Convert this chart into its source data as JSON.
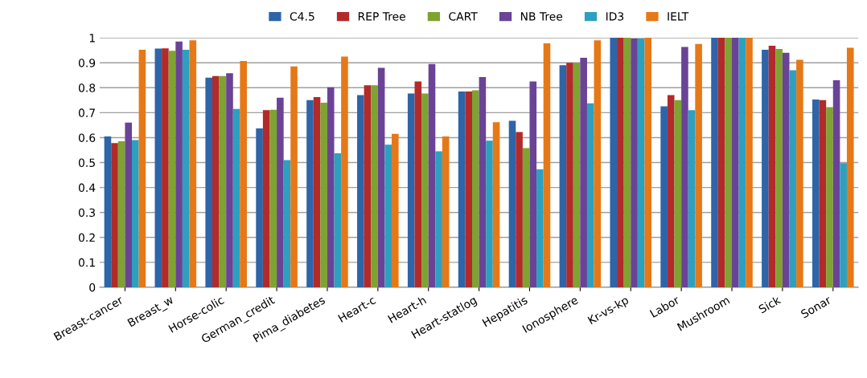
{
  "chart_data": {
    "type": "bar",
    "categories": [
      "Breast-cancer",
      "Breast_w",
      "Horse-colic",
      "German_credit",
      "Pima_diabetes",
      "Heart-c",
      "Heart-h",
      "Heart-statlog",
      "Hepatitis",
      "Ionosphere",
      "Kr-vs-kp",
      "Labor",
      "Mushroom",
      "Sick",
      "Sonar"
    ],
    "series": [
      {
        "name": "C4.5",
        "color": "#2e64a8",
        "values": [
          0.605,
          0.957,
          0.84,
          0.637,
          0.75,
          0.77,
          0.777,
          0.785,
          0.667,
          0.89,
          1.0,
          0.725,
          1.0,
          0.952,
          0.753
        ]
      },
      {
        "name": "REP Tree",
        "color": "#b22a2a",
        "values": [
          0.578,
          0.958,
          0.847,
          0.71,
          0.762,
          0.81,
          0.825,
          0.785,
          0.622,
          0.9,
          1.0,
          0.77,
          1.0,
          0.968,
          0.75
        ]
      },
      {
        "name": "CART",
        "color": "#7ea331",
        "values": [
          0.585,
          0.948,
          0.847,
          0.712,
          0.74,
          0.81,
          0.777,
          0.79,
          0.558,
          0.9,
          1.0,
          0.75,
          1.0,
          0.955,
          0.722
        ]
      },
      {
        "name": "NB Tree",
        "color": "#6a4396",
        "values": [
          0.66,
          0.985,
          0.858,
          0.76,
          0.802,
          0.88,
          0.895,
          0.843,
          0.825,
          0.92,
          0.997,
          0.963,
          1.0,
          0.94,
          0.83
        ]
      },
      {
        "name": "ID3",
        "color": "#2ea0bf",
        "values": [
          0.59,
          0.952,
          0.715,
          0.51,
          0.537,
          0.572,
          0.545,
          0.588,
          0.473,
          0.737,
          0.997,
          0.71,
          1.0,
          0.87,
          0.498
        ]
      },
      {
        "name": "IELT",
        "color": "#e67817",
        "values": [
          0.952,
          0.99,
          0.907,
          0.885,
          0.925,
          0.615,
          0.605,
          0.662,
          0.978,
          0.99,
          1.0,
          0.975,
          1.0,
          0.912,
          0.96
        ]
      }
    ],
    "ylim": [
      0,
      1
    ],
    "yticks": [
      0,
      0.1,
      0.2,
      0.3,
      0.4,
      0.5,
      0.6,
      0.7,
      0.8,
      0.9,
      1
    ],
    "grid": "y",
    "legend": "top"
  }
}
